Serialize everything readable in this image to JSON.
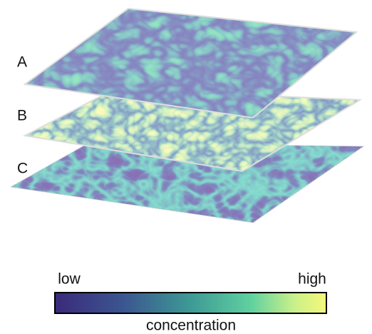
{
  "layers": [
    {
      "label": "A"
    },
    {
      "label": "B"
    },
    {
      "label": "C"
    }
  ],
  "colorbar": {
    "low_label": "low",
    "high_label": "high",
    "title": "concentration"
  }
}
